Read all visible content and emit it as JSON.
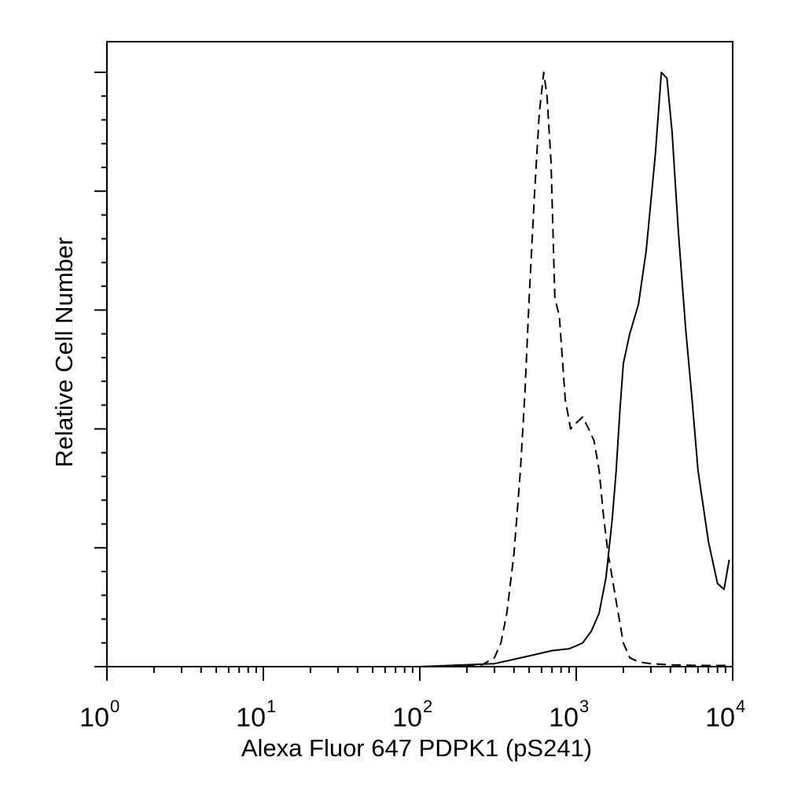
{
  "chart_data": {
    "type": "line",
    "title": "",
    "xlabel": "Alexa Fluor 647 PDPK1 (pS241)",
    "ylabel": "Relative Cell Number",
    "x_scale": "log",
    "xlim": [
      1,
      10000
    ],
    "ylim": [
      0,
      100
    ],
    "x_tick_labels": [
      {
        "base": "10",
        "exp": "0",
        "value": 1
      },
      {
        "base": "10",
        "exp": "1",
        "value": 10
      },
      {
        "base": "10",
        "exp": "2",
        "value": 100
      },
      {
        "base": "10",
        "exp": "3",
        "value": 1000
      },
      {
        "base": "10",
        "exp": "4",
        "value": 10000
      }
    ],
    "y_major_ticks": [
      0,
      20,
      40,
      60,
      80,
      100
    ],
    "grid": false,
    "legend": "none",
    "series": [
      {
        "style": "dashed",
        "color": "#000000",
        "x": [
          1,
          10,
          100,
          250,
          300,
          330,
          360,
          400,
          440,
          470,
          500,
          540,
          580,
          620,
          650,
          690,
          730,
          780,
          850,
          920,
          1000,
          1100,
          1200,
          1300,
          1400,
          1500,
          1600,
          1800,
          2000,
          2200,
          2500,
          3000,
          4000,
          6000,
          9000
        ],
        "y": [
          0,
          0,
          0,
          0.3,
          1.5,
          4,
          9,
          19,
          33,
          46,
          62,
          79,
          93,
          100,
          96,
          85,
          62,
          59,
          45,
          40,
          41,
          42,
          40,
          38,
          33,
          25,
          19,
          11,
          4,
          1.5,
          0.8,
          0.5,
          0.3,
          0.2,
          0.2
        ]
      },
      {
        "style": "solid",
        "color": "#000000",
        "x": [
          1,
          10,
          100,
          300,
          500,
          700,
          900,
          1000,
          1100,
          1250,
          1400,
          1550,
          1700,
          1800,
          1900,
          2000,
          2200,
          2500,
          2800,
          3200,
          3500,
          3800,
          4100,
          4500,
          5000,
          5500,
          6000,
          7000,
          8000,
          8800,
          9500
        ],
        "y": [
          0,
          0,
          0,
          0.5,
          1.8,
          2.7,
          3,
          3.5,
          4,
          6,
          9,
          15,
          25,
          33,
          43,
          51,
          56,
          61,
          70,
          86,
          100,
          99,
          90,
          73,
          57,
          45,
          33,
          21,
          14,
          13,
          18
        ]
      }
    ]
  }
}
